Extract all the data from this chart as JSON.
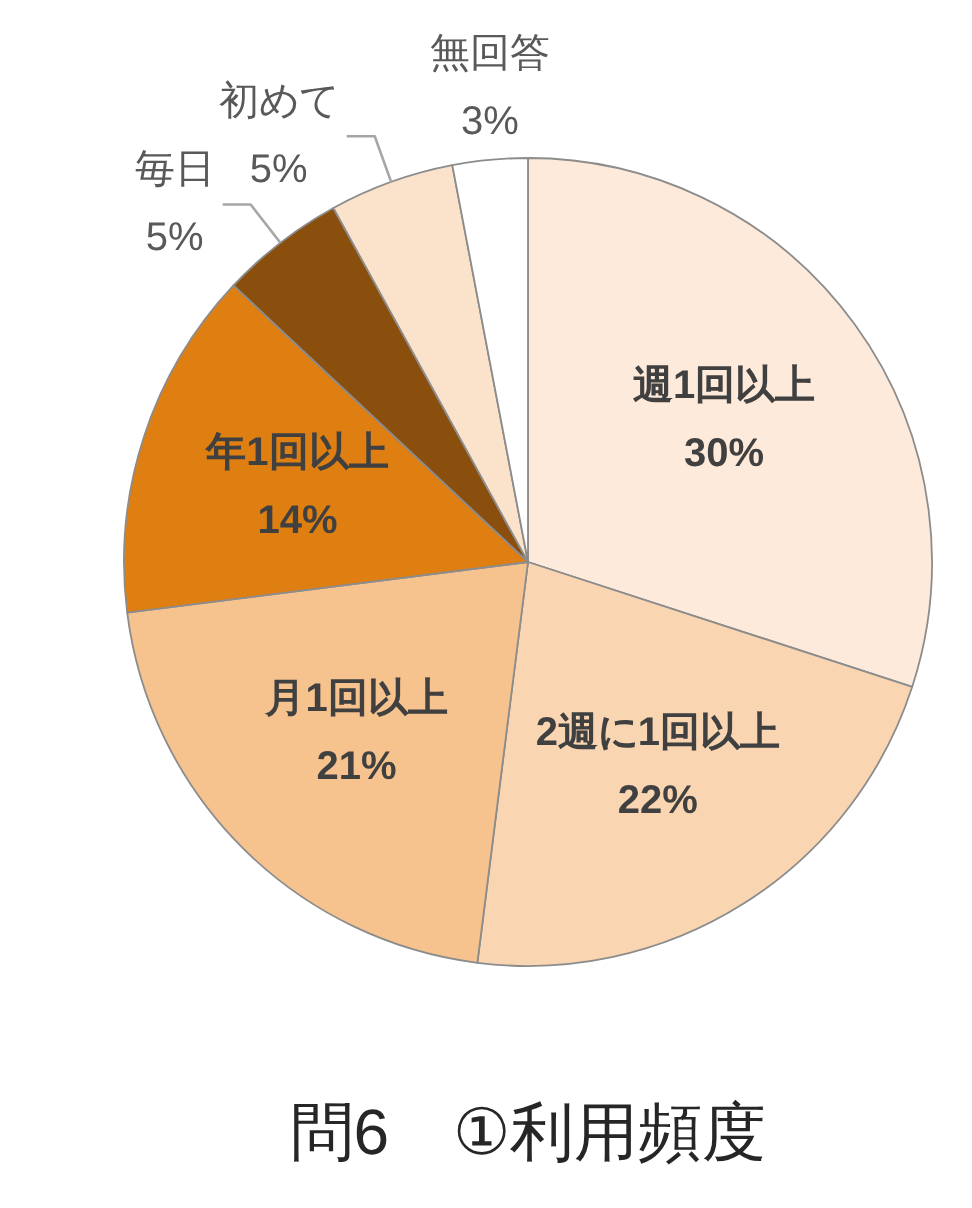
{
  "chart_data": {
    "type": "pie",
    "title": "問6　①利用頻度",
    "categories": [
      "週1回以上",
      "2週に1回以上",
      "月1回以上",
      "年1回以上",
      "毎日",
      "初めて",
      "無回答"
    ],
    "values": [
      30,
      22,
      21,
      14,
      5,
      5,
      3
    ],
    "colors": [
      "#fdeada",
      "#f9d6b1",
      "#f6c38e",
      "#df7f12",
      "#8b4f0d",
      "#fbe3cb",
      "#ffffff"
    ],
    "value_labels": [
      "30%",
      "22%",
      "21%",
      "14%",
      "5%",
      "5%",
      "3%"
    ]
  }
}
